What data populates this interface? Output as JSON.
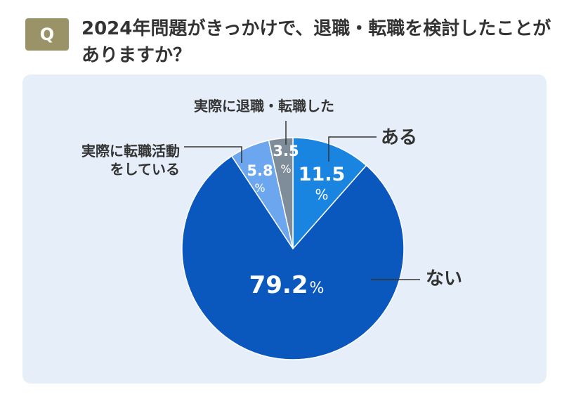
{
  "question": {
    "badge": "Q",
    "text": "2024年問題がきっかけで、退職・転職を検討したことがありますか？"
  },
  "chart_data": {
    "type": "pie",
    "title": "2024年問題がきっかけで、退職・転職を検討したことがありますか？",
    "start_angle_deg": 0,
    "direction": "clockwise",
    "slices": [
      {
        "label": "ある",
        "value": 11.5,
        "value_text": "11.5",
        "color": "#1a85e0"
      },
      {
        "label": "ない",
        "value": 79.2,
        "value_text": "79.2",
        "color": "#0a57bd"
      },
      {
        "label_lines": [
          "実際に転職活動",
          "をしている"
        ],
        "value": 5.8,
        "value_text": "5.8",
        "color": "#6ba6ef"
      },
      {
        "label": "実際に退職・転職した",
        "value": 3.5,
        "value_text": "3.5",
        "color": "#7f8c99"
      }
    ],
    "unit": "%"
  }
}
